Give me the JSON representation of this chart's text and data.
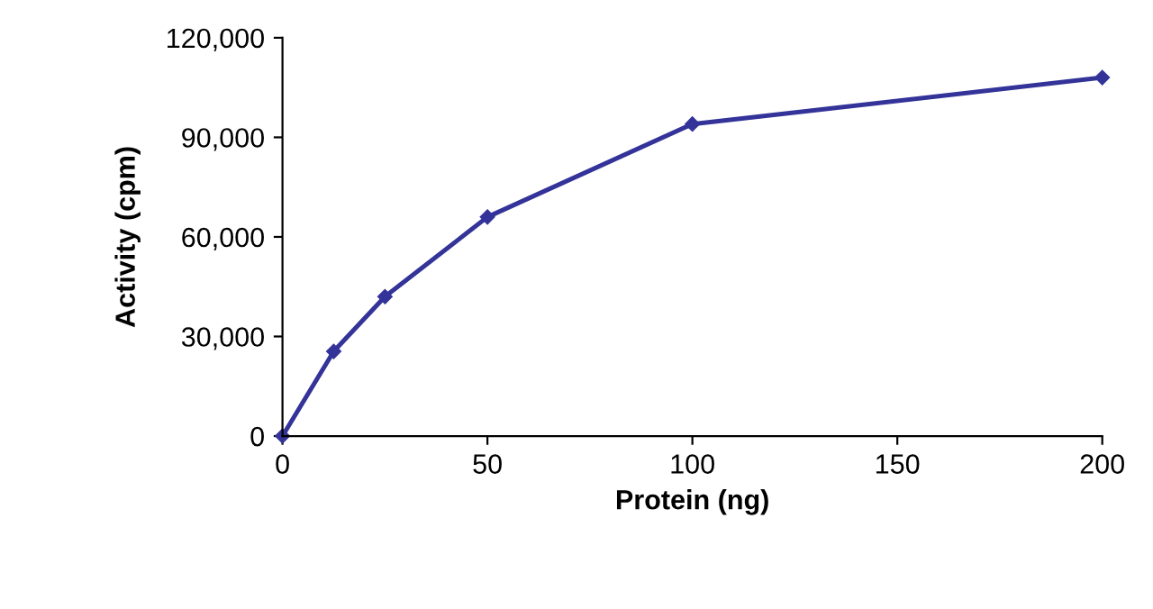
{
  "chart_data": {
    "type": "line",
    "xlabel": "Protein (ng)",
    "ylabel": "Activity (cpm)",
    "x": [
      0,
      12.5,
      25,
      50,
      100,
      200
    ],
    "series": [
      {
        "color": "#333399",
        "values": [
          0,
          25500,
          42000,
          66000,
          94000,
          108000
        ]
      }
    ],
    "xlim": [
      0,
      200
    ],
    "xticks": [
      0,
      50,
      100,
      150,
      200
    ],
    "ylim": [
      0,
      120000
    ],
    "yticks": [
      0,
      {
        "value": 30000,
        "label": "30,000"
      },
      {
        "value": 60000,
        "label": "60,000"
      },
      {
        "value": 90000,
        "label": "90,000"
      },
      {
        "value": 120000,
        "label": "120,000"
      }
    ],
    "grid": false,
    "marker": "diamond",
    "line_style": "solid"
  }
}
